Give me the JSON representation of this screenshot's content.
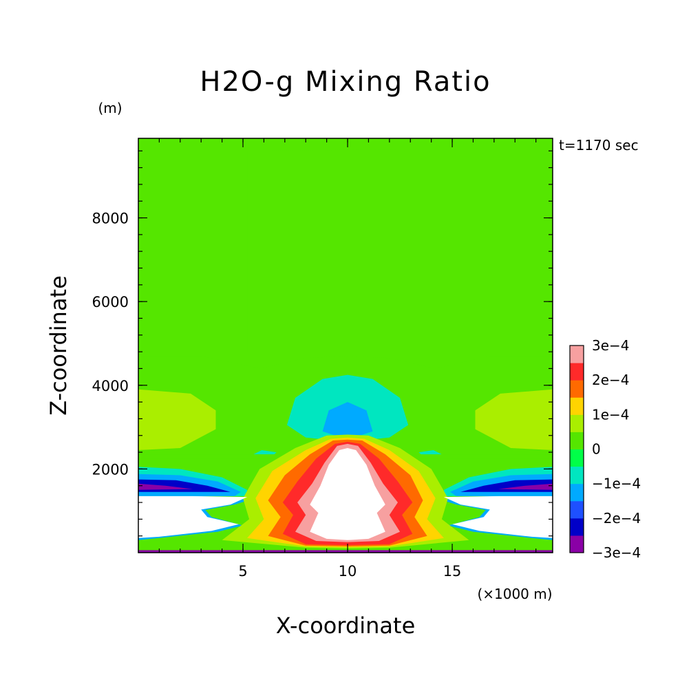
{
  "chart_data": {
    "type": "contour",
    "title": "H2O-g Mixing Ratio",
    "xlabel": "X-coordinate",
    "ylabel": "Z-coordinate",
    "y_unit": "(m)",
    "x_unit": "(×1000 m)",
    "time_label": "t=1170 sec",
    "xlim": [
      0,
      19.8
    ],
    "ylim": [
      0,
      9900
    ],
    "x_ticks": [
      5,
      10,
      15
    ],
    "x_tick_labels": [
      "5",
      "10",
      "15"
    ],
    "y_ticks": [
      2000,
      4000,
      6000,
      8000
    ],
    "y_tick_labels": [
      "2000",
      "4000",
      "6000",
      "8000"
    ],
    "legend_placement": "right",
    "colorbar": {
      "levels": [
        -0.0003,
        -0.00025,
        -0.0002,
        -0.00015,
        -0.0001,
        -5e-05,
        0,
        5e-05,
        0.0001,
        0.00015,
        0.0002,
        0.00025,
        0.0003
      ],
      "colors": [
        "#8a00a6",
        "#0000c8",
        "#1e50ff",
        "#00aaff",
        "#00e6c0",
        "#00ff48",
        "#55e600",
        "#aaee00",
        "#ffd400",
        "#ff6a00",
        "#ff2a2a",
        "#f7a0a0"
      ],
      "labels": [
        "3e−4",
        "2e−4",
        "1e−4",
        "0",
        "−1e−4",
        "−2e−4",
        "−3e−4"
      ]
    },
    "regions": [
      {
        "name": "background",
        "level": 3e-05,
        "polygon": [
          [
            0,
            0
          ],
          [
            19.8,
            0
          ],
          [
            19.8,
            9900
          ],
          [
            0,
            9900
          ]
        ]
      },
      {
        "name": "central-column",
        "level": 1e-05,
        "polygon": [
          [
            5.2,
            9600
          ],
          [
            15,
            9650
          ],
          [
            15,
            4800
          ],
          [
            19.8,
            4800
          ],
          [
            19.8,
            0
          ],
          [
            0,
            0
          ],
          [
            0,
            4800
          ],
          [
            5.2,
            4800
          ]
        ]
      },
      {
        "name": "dome-layer",
        "level": 1e-05,
        "polygon": [
          [
            0,
            4700
          ],
          [
            3,
            4700
          ],
          [
            5.8,
            4400
          ],
          [
            8,
            4650
          ],
          [
            10,
            4700
          ],
          [
            12,
            4650
          ],
          [
            14.2,
            4400
          ],
          [
            16.8,
            4700
          ],
          [
            19.8,
            4700
          ],
          [
            19.8,
            0
          ],
          [
            0,
            0
          ]
        ]
      },
      {
        "name": "left-lobe",
        "level": 8e-05,
        "polygon": [
          [
            0,
            3900
          ],
          [
            2.5,
            3800
          ],
          [
            3.7,
            3400
          ],
          [
            3.7,
            2950
          ],
          [
            2,
            2500
          ],
          [
            0,
            2450
          ]
        ]
      },
      {
        "name": "right-lobe",
        "level": 8e-05,
        "polygon": [
          [
            19.8,
            3900
          ],
          [
            17.3,
            3800
          ],
          [
            16.1,
            3400
          ],
          [
            16.1,
            2950
          ],
          [
            17.8,
            2500
          ],
          [
            19.8,
            2450
          ]
        ]
      },
      {
        "name": "central-cyan",
        "level": -8e-05,
        "polygon": [
          [
            7.1,
            3050
          ],
          [
            7.5,
            3700
          ],
          [
            8.8,
            4150
          ],
          [
            10,
            4250
          ],
          [
            11.2,
            4150
          ],
          [
            12.5,
            3700
          ],
          [
            12.9,
            3050
          ],
          [
            12,
            2750
          ],
          [
            10,
            2650
          ],
          [
            8,
            2750
          ]
        ]
      },
      {
        "name": "central-blue",
        "level": -0.00013,
        "polygon": [
          [
            8.8,
            2900
          ],
          [
            9.1,
            3400
          ],
          [
            10,
            3600
          ],
          [
            10.9,
            3400
          ],
          [
            11.2,
            2900
          ],
          [
            10,
            2700
          ]
        ]
      },
      {
        "name": "small-cyan-left",
        "level": -8e-05,
        "polygon": [
          [
            5.5,
            2350
          ],
          [
            5.9,
            2450
          ],
          [
            6.6,
            2400
          ],
          [
            6.4,
            2300
          ]
        ]
      },
      {
        "name": "small-cyan-right",
        "level": -8e-05,
        "polygon": [
          [
            13.6,
            2300
          ],
          [
            13.4,
            2400
          ],
          [
            14.1,
            2450
          ],
          [
            14.5,
            2350
          ]
        ]
      },
      {
        "name": "pale-band",
        "level": 3e-05,
        "polygon": [
          [
            0,
            2350
          ],
          [
            0,
            2250
          ],
          [
            19.8,
            2250
          ],
          [
            19.8,
            2350
          ]
        ]
      },
      {
        "name": "left-layer-cyan",
        "level": -8e-05,
        "polygon": [
          [
            0,
            2050
          ],
          [
            2,
            2000
          ],
          [
            4,
            1800
          ],
          [
            5.2,
            1500
          ],
          [
            5.2,
            1350
          ],
          [
            0,
            1350
          ]
        ]
      },
      {
        "name": "left-layer-blue",
        "level": -0.00013,
        "polygon": [
          [
            0,
            1880
          ],
          [
            2,
            1850
          ],
          [
            3.8,
            1700
          ],
          [
            4.9,
            1450
          ],
          [
            4.6,
            1350
          ],
          [
            0,
            1350
          ]
        ]
      },
      {
        "name": "left-layer-darkblue",
        "level": -0.00022,
        "polygon": [
          [
            0,
            1750
          ],
          [
            1.8,
            1730
          ],
          [
            3.3,
            1600
          ],
          [
            4.4,
            1450
          ],
          [
            0,
            1450
          ]
        ]
      },
      {
        "name": "left-layer-purple",
        "level": -0.00028,
        "polygon": [
          [
            0,
            1650
          ],
          [
            1.3,
            1600
          ],
          [
            2.6,
            1520
          ],
          [
            0,
            1500
          ]
        ]
      },
      {
        "name": "right-layer-cyan",
        "level": -8e-05,
        "polygon": [
          [
            19.8,
            2050
          ],
          [
            17.8,
            2000
          ],
          [
            15.8,
            1800
          ],
          [
            14.6,
            1500
          ],
          [
            14.6,
            1350
          ],
          [
            19.8,
            1350
          ]
        ]
      },
      {
        "name": "right-layer-blue",
        "level": -0.00013,
        "polygon": [
          [
            19.8,
            1880
          ],
          [
            17.8,
            1850
          ],
          [
            16,
            1700
          ],
          [
            14.9,
            1450
          ],
          [
            15.2,
            1350
          ],
          [
            19.8,
            1350
          ]
        ]
      },
      {
        "name": "right-layer-darkblue",
        "level": -0.00022,
        "polygon": [
          [
            19.8,
            1750
          ],
          [
            18,
            1730
          ],
          [
            16.5,
            1600
          ],
          [
            15.4,
            1450
          ],
          [
            19.8,
            1450
          ]
        ]
      },
      {
        "name": "right-layer-purple",
        "level": -0.00028,
        "polygon": [
          [
            19.8,
            1650
          ],
          [
            18.5,
            1600
          ],
          [
            17.2,
            1520
          ],
          [
            19.8,
            1500
          ]
        ]
      },
      {
        "name": "left-lower-blue",
        "level": -0.00013,
        "polygon": [
          [
            2.8,
            1350
          ],
          [
            5.6,
            1300
          ],
          [
            4.6,
            1150
          ],
          [
            3.2,
            1020
          ],
          [
            3.5,
            850
          ],
          [
            5,
            650
          ],
          [
            3.8,
            500
          ],
          [
            1,
            350
          ],
          [
            0,
            300
          ],
          [
            0,
            1350
          ]
        ]
      },
      {
        "name": "right-lower-blue",
        "level": -0.00013,
        "polygon": [
          [
            17,
            1350
          ],
          [
            14.2,
            1300
          ],
          [
            15.2,
            1150
          ],
          [
            16.6,
            1020
          ],
          [
            16.3,
            850
          ],
          [
            14.8,
            650
          ],
          [
            16,
            500
          ],
          [
            18.8,
            350
          ],
          [
            19.8,
            300
          ],
          [
            19.8,
            1350
          ]
        ]
      },
      {
        "name": "central-lime",
        "level": 8e-05,
        "polygon": [
          [
            5,
            1300
          ],
          [
            5.8,
            2000
          ],
          [
            7.5,
            2500
          ],
          [
            9,
            2800
          ],
          [
            10,
            2820
          ],
          [
            11,
            2800
          ],
          [
            12.5,
            2500
          ],
          [
            14,
            2000
          ],
          [
            14.8,
            1300
          ],
          [
            14.5,
            800
          ],
          [
            15.8,
            300
          ],
          [
            12,
            120
          ],
          [
            10,
            100
          ],
          [
            8,
            120
          ],
          [
            4,
            300
          ],
          [
            5.3,
            800
          ]
        ]
      },
      {
        "name": "central-yellow",
        "level": 0.00013,
        "polygon": [
          [
            5.6,
            1300
          ],
          [
            6.4,
            1950
          ],
          [
            8,
            2450
          ],
          [
            9.2,
            2720
          ],
          [
            10,
            2750
          ],
          [
            10.8,
            2720
          ],
          [
            12,
            2450
          ],
          [
            13.4,
            1950
          ],
          [
            14.2,
            1300
          ],
          [
            13.8,
            800
          ],
          [
            14.6,
            350
          ],
          [
            12,
            150
          ],
          [
            10,
            130
          ],
          [
            8,
            150
          ],
          [
            5.2,
            350
          ],
          [
            6,
            800
          ]
        ]
      },
      {
        "name": "central-orange",
        "level": 0.00018,
        "polygon": [
          [
            6.2,
            1250
          ],
          [
            7,
            1850
          ],
          [
            8.2,
            2350
          ],
          [
            9.3,
            2680
          ],
          [
            10,
            2700
          ],
          [
            10.7,
            2680
          ],
          [
            11.8,
            2350
          ],
          [
            13,
            1850
          ],
          [
            13.6,
            1250
          ],
          [
            13.2,
            850
          ],
          [
            13.8,
            400
          ],
          [
            12,
            170
          ],
          [
            10,
            150
          ],
          [
            8,
            170
          ],
          [
            6.2,
            400
          ],
          [
            6.8,
            850
          ]
        ]
      },
      {
        "name": "central-red",
        "level": 0.00023,
        "polygon": [
          [
            6.9,
            1200
          ],
          [
            7.6,
            1700
          ],
          [
            8.5,
            2250
          ],
          [
            9.4,
            2600
          ],
          [
            10,
            2650
          ],
          [
            10.6,
            2600
          ],
          [
            11.5,
            2250
          ],
          [
            12.4,
            1700
          ],
          [
            13.1,
            1200
          ],
          [
            12.6,
            900
          ],
          [
            13.1,
            450
          ],
          [
            12,
            200
          ],
          [
            10,
            180
          ],
          [
            8,
            200
          ],
          [
            6.9,
            450
          ],
          [
            7.4,
            900
          ]
        ]
      },
      {
        "name": "central-pink",
        "level": 0.00028,
        "polygon": [
          [
            7.6,
            1200
          ],
          [
            8.3,
            1650
          ],
          [
            8.9,
            2150
          ],
          [
            9.5,
            2550
          ],
          [
            10,
            2600
          ],
          [
            10.5,
            2550
          ],
          [
            11.1,
            2150
          ],
          [
            11.7,
            1650
          ],
          [
            12.4,
            1200
          ],
          [
            12,
            900
          ],
          [
            12.5,
            500
          ],
          [
            11.5,
            280
          ],
          [
            10,
            250
          ],
          [
            8.5,
            280
          ],
          [
            7.5,
            500
          ],
          [
            8,
            900
          ]
        ]
      },
      {
        "name": "central-white",
        "level": null,
        "polygon": [
          [
            8.2,
            1150
          ],
          [
            8.7,
            1600
          ],
          [
            9.1,
            2100
          ],
          [
            9.6,
            2450
          ],
          [
            10,
            2500
          ],
          [
            10.4,
            2450
          ],
          [
            10.9,
            2100
          ],
          [
            11.3,
            1600
          ],
          [
            11.8,
            1150
          ],
          [
            11.4,
            950
          ],
          [
            11.8,
            500
          ],
          [
            11,
            330
          ],
          [
            10,
            300
          ],
          [
            9,
            330
          ],
          [
            8.2,
            500
          ],
          [
            8.6,
            950
          ]
        ]
      },
      {
        "name": "left-white-pocket",
        "level": null,
        "polygon": [
          [
            0,
            1350
          ],
          [
            2.6,
            1350
          ],
          [
            5.2,
            1330
          ],
          [
            4.4,
            1150
          ],
          [
            3,
            1030
          ],
          [
            3.3,
            850
          ],
          [
            4.8,
            680
          ],
          [
            3.5,
            520
          ],
          [
            1,
            380
          ],
          [
            0,
            350
          ]
        ]
      },
      {
        "name": "right-white-pocket",
        "level": null,
        "polygon": [
          [
            19.8,
            1350
          ],
          [
            17.2,
            1350
          ],
          [
            14.6,
            1330
          ],
          [
            15.4,
            1150
          ],
          [
            16.8,
            1030
          ],
          [
            16.5,
            850
          ],
          [
            15,
            680
          ],
          [
            16.3,
            520
          ],
          [
            18.8,
            380
          ],
          [
            19.8,
            350
          ]
        ]
      },
      {
        "name": "bottom-purple",
        "level": -0.00028,
        "polygon": [
          [
            0,
            0
          ],
          [
            19.8,
            0
          ],
          [
            19.8,
            60
          ],
          [
            0,
            60
          ]
        ]
      }
    ]
  }
}
